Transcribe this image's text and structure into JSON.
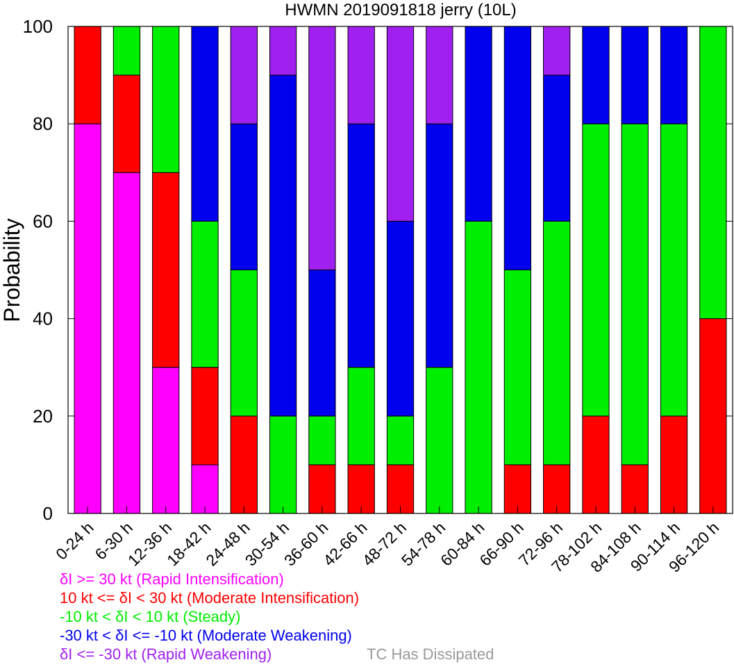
{
  "chart_data": {
    "type": "bar",
    "stacked": true,
    "title": "HWMN 2019091818 jerry (10L)",
    "ylabel": "Probability",
    "ylim": [
      0,
      100
    ],
    "yticks": [
      "0",
      "20",
      "40",
      "60",
      "80",
      "100"
    ],
    "categories": [
      "0-24 h",
      "6-30 h",
      "12-36 h",
      "18-42 h",
      "24-48 h",
      "30-54 h",
      "36-60 h",
      "42-66 h",
      "48-72 h",
      "54-78 h",
      "60-84 h",
      "66-90 h",
      "72-96 h",
      "78-102 h",
      "84-108 h",
      "90-114 h",
      "96-120 h"
    ],
    "series": [
      {
        "name": "δI >= 30 kt (Rapid Intensification)",
        "color": "#ff00ff",
        "values": [
          80,
          70,
          30,
          10,
          0,
          0,
          0,
          0,
          0,
          0,
          0,
          0,
          0,
          0,
          0,
          0,
          0
        ]
      },
      {
        "name": "10 kt <= δI < 30 kt (Moderate Intensification)",
        "color": "#ff0000",
        "values": [
          20,
          20,
          40,
          20,
          20,
          0,
          10,
          10,
          10,
          0,
          0,
          10,
          10,
          20,
          10,
          20,
          40
        ]
      },
      {
        "name": "-10 kt < δI < 10 kt (Steady)",
        "color": "#00ee00",
        "values": [
          0,
          10,
          30,
          30,
          30,
          20,
          10,
          20,
          10,
          30,
          60,
          40,
          50,
          60,
          70,
          60,
          60
        ]
      },
      {
        "name": "-30 kt < δI <= -10 kt (Moderate Weakening)",
        "color": "#0000ee",
        "values": [
          0,
          0,
          0,
          40,
          30,
          70,
          30,
          50,
          40,
          50,
          40,
          50,
          30,
          20,
          20,
          20,
          0
        ]
      },
      {
        "name": "δI <= -30 kt (Rapid Weakening)",
        "color": "#a020f0",
        "values": [
          0,
          0,
          0,
          0,
          20,
          10,
          50,
          20,
          40,
          20,
          0,
          0,
          10,
          0,
          0,
          0,
          0
        ]
      }
    ],
    "dissipated_label": "TC Has Dissipated",
    "dissipated_color": "#999999",
    "grid": false,
    "legend_position": "bottom-left"
  }
}
